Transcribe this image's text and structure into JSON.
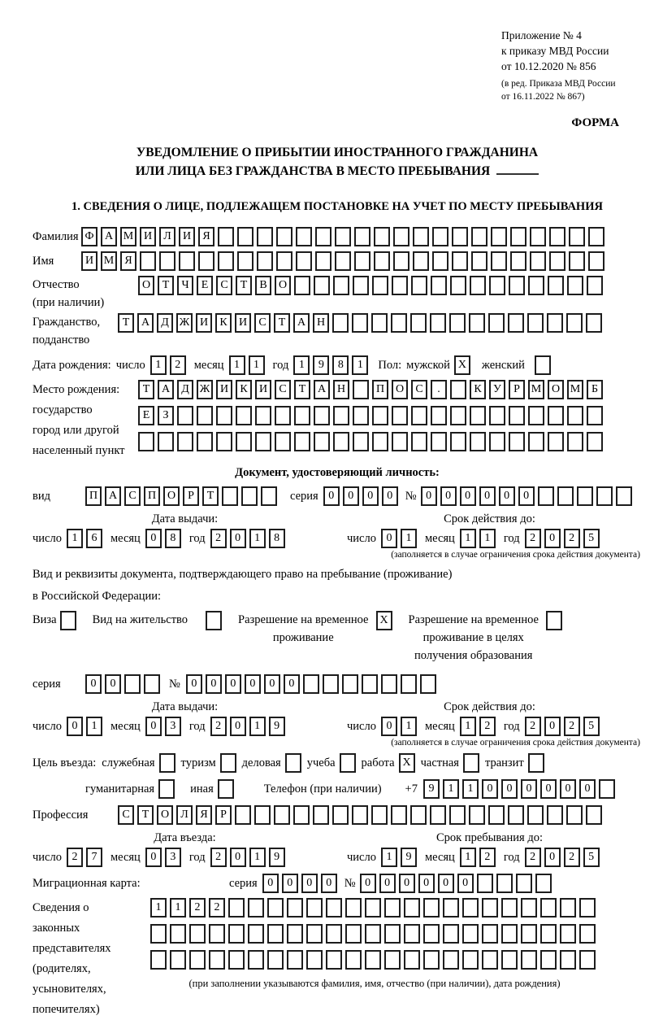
{
  "header": {
    "ref_line1": "Приложение № 4",
    "ref_line2": "к приказу МВД России",
    "ref_line3": "от 10.12.2020 № 856",
    "ref_sub1": "(в ред. Приказа МВД России",
    "ref_sub2": "от 16.11.2022 № 867)",
    "form_label": "ФОРМА"
  },
  "title": {
    "line1": "УВЕДОМЛЕНИЕ О ПРИБЫТИИ ИНОСТРАННОГО ГРАЖДАНИНА",
    "line2": "ИЛИ ЛИЦА БЕЗ ГРАЖДАНСТВА В МЕСТО ПРЕБЫВАНИЯ"
  },
  "section1": {
    "heading": "1. СВЕДЕНИЯ О ЛИЦЕ, ПОДЛЕЖАЩЕМ ПОСТАНОВКЕ НА УЧЕТ ПО МЕСТУ ПРЕБЫВАНИЯ",
    "surname": {
      "label": "Фамилия",
      "value": "ФАМИЛИЯ",
      "count": 27
    },
    "name": {
      "label": "Имя",
      "value": "ИМЯ",
      "count": 27
    },
    "patronymic": {
      "label1": "Отчество",
      "label2": "(при наличии)",
      "value": "ОТЧЕСТВО",
      "count": 24
    },
    "citizenship": {
      "label1": "Гражданство,",
      "label2": "подданство",
      "value": "ТАДЖИКИСТАН",
      "count": 25
    },
    "birth_date": {
      "label": "Дата рождения:",
      "day_label": "число",
      "day": {
        "value": "12",
        "count": 2
      },
      "month_label": "месяц",
      "month": {
        "value": "11",
        "count": 2
      },
      "year_label": "год",
      "year": {
        "value": "1981",
        "count": 4
      }
    },
    "sex": {
      "label": "Пол:",
      "male_label": "мужской",
      "male_value": "X",
      "female_label": "женский",
      "female_value": ""
    },
    "birth_place": {
      "label": "Место рождения:",
      "sub1": "государство",
      "sub2": "город или другой",
      "sub3": "населенный пункт",
      "row1": {
        "value": "ТАДЖИКИСТАН ПОС. КУРМОМБ",
        "count": 24
      },
      "row2": {
        "value": "ЕЗ",
        "count": 24
      },
      "row3": {
        "value": "",
        "count": 24
      }
    }
  },
  "identity_doc": {
    "heading": "Документ, удостоверяющий личность:",
    "kind_label": "вид",
    "kind": {
      "value": "ПАСПОРТ",
      "count": 10
    },
    "series_label": "серия",
    "series": {
      "value": "0000",
      "count": 4
    },
    "number_label": "№",
    "number": {
      "value": "000000",
      "count": 11
    },
    "issue": {
      "heading": "Дата выдачи:",
      "day_label": "число",
      "day": {
        "value": "16",
        "count": 2
      },
      "month_label": "месяц",
      "month": {
        "value": "08",
        "count": 2
      },
      "year_label": "год",
      "year": {
        "value": "2018",
        "count": 4
      }
    },
    "expiry": {
      "heading": "Срок действия до:",
      "day_label": "число",
      "day": {
        "value": "01",
        "count": 2
      },
      "month_label": "месяц",
      "month": {
        "value": "11",
        "count": 2
      },
      "year_label": "год",
      "year": {
        "value": "2025",
        "count": 4
      }
    },
    "note": "(заполняется в случае ограничения срока действия документа)"
  },
  "residence_doc": {
    "intro1": "Вид и реквизиты документа, подтверждающего право на пребывание (проживание)",
    "intro2": "в Российской Федерации:",
    "visa": {
      "label": "Виза",
      "value": ""
    },
    "residence_permit": {
      "label": "Вид на жительство",
      "value": ""
    },
    "temp_permit": {
      "line1": "Разрешение на временное",
      "line2": "проживание",
      "value": "X"
    },
    "edu_permit": {
      "line1": "Разрешение на временное",
      "line2": "проживание в целях",
      "line3": "получения образования",
      "value": ""
    },
    "series_label": "серия",
    "series": {
      "value": "00",
      "count": 4
    },
    "number_label": "№",
    "number": {
      "value": "000000",
      "count": 13
    },
    "issue": {
      "heading": "Дата выдачи:",
      "day_label": "число",
      "day": {
        "value": "01",
        "count": 2
      },
      "month_label": "месяц",
      "month": {
        "value": "03",
        "count": 2
      },
      "year_label": "год",
      "year": {
        "value": "2019",
        "count": 4
      }
    },
    "expiry": {
      "heading": "Срок действия до:",
      "day_label": "число",
      "day": {
        "value": "01",
        "count": 2
      },
      "month_label": "месяц",
      "month": {
        "value": "12",
        "count": 2
      },
      "year_label": "год",
      "year": {
        "value": "2025",
        "count": 4
      }
    },
    "note": "(заполняется в случае ограничения срока действия документа)"
  },
  "visit": {
    "label": "Цель въезда:",
    "p1": {
      "label": "служебная",
      "value": ""
    },
    "p2": {
      "label": "туризм",
      "value": ""
    },
    "p3": {
      "label": "деловая",
      "value": ""
    },
    "p4": {
      "label": "учеба",
      "value": ""
    },
    "p5": {
      "label": "работа",
      "value": "X"
    },
    "p6": {
      "label": "частная",
      "value": ""
    },
    "p7": {
      "label": "транзит",
      "value": ""
    },
    "p8": {
      "label": "гуманитарная",
      "value": ""
    },
    "p9": {
      "label": "иная",
      "value": ""
    },
    "phone_label": "Телефон (при наличии)",
    "phone_prefix": "+7",
    "phone": {
      "value": "911000000",
      "count": 10
    }
  },
  "profession": {
    "label": "Профессия",
    "value": "СТОЛЯР",
    "count": 25
  },
  "entry": {
    "arrival": {
      "heading": "Дата въезда:",
      "day_label": "число",
      "day": {
        "value": "27",
        "count": 2
      },
      "month_label": "месяц",
      "month": {
        "value": "03",
        "count": 2
      },
      "year_label": "год",
      "year": {
        "value": "2019",
        "count": 4
      }
    },
    "stay": {
      "heading": "Срок пребывания до:",
      "day_label": "число",
      "day": {
        "value": "19",
        "count": 2
      },
      "month_label": "месяц",
      "month": {
        "value": "12",
        "count": 2
      },
      "year_label": "год",
      "year": {
        "value": "2025",
        "count": 4
      }
    }
  },
  "migration_card": {
    "label": "Миграционная карта:",
    "series_label": "серия",
    "series": {
      "value": "0000",
      "count": 4
    },
    "number_label": "№",
    "number": {
      "value": "000000",
      "count": 10
    }
  },
  "representatives": {
    "label1": "Сведения о",
    "label2": "законных",
    "label3": "представителях",
    "label4": "(родителях,",
    "label5": "усыновителях,",
    "label6": "попечителях)",
    "row1": {
      "value": "1122",
      "count": 23
    },
    "row2": {
      "value": "",
      "count": 23
    },
    "row3": {
      "value": "",
      "count": 23
    },
    "note": "(при заполнении указываются фамилия, имя, отчество (при наличии), дата рождения)"
  }
}
